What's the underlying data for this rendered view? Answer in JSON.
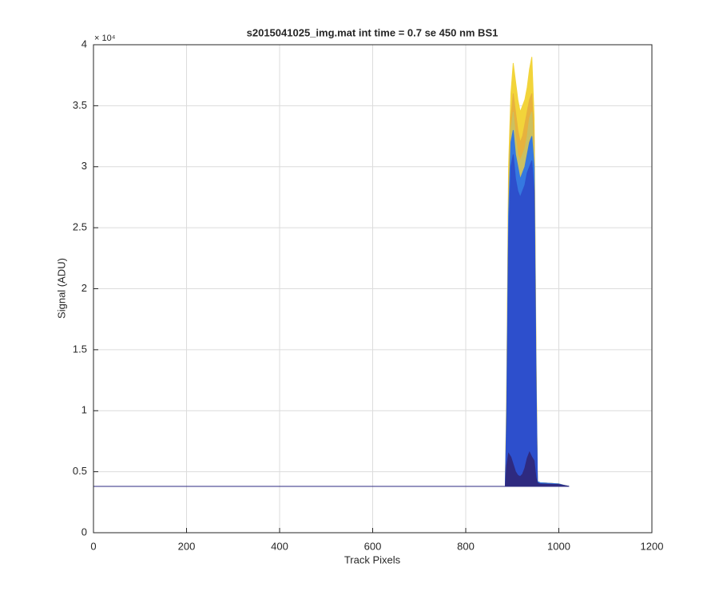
{
  "chart_data": {
    "type": "area",
    "title": "s2015041025_img.mat int time = 0.7 se  450 nm BS1",
    "x_label": "Track Pixels",
    "y_label": "Signal (ADU)",
    "y_exponent": "× 10⁴",
    "x": [
      0,
      885,
      888,
      892,
      897,
      902,
      907,
      912,
      917,
      922,
      927,
      932,
      937,
      942,
      947,
      951,
      954,
      960,
      1000,
      1010,
      1022
    ],
    "series": [
      {
        "name": "yellow",
        "color": "#f2d43a",
        "values": [
          3800,
          3800,
          12000,
          30000,
          36000,
          38500,
          37000,
          35500,
          34500,
          35000,
          35500,
          36500,
          38000,
          39000,
          34000,
          15000,
          4200,
          4100,
          4000,
          3900,
          3800
        ]
      },
      {
        "name": "orange",
        "color": "#e7b23e",
        "values": [
          3800,
          3800,
          11000,
          28000,
          34000,
          36000,
          34500,
          33000,
          32000,
          32500,
          33500,
          34500,
          35500,
          36000,
          32000,
          14000,
          4200,
          4100,
          4000,
          3900,
          3800
        ]
      },
      {
        "name": "olive",
        "color": "#cbc060",
        "values": [
          3800,
          3800,
          10500,
          27000,
          33000,
          34500,
          32500,
          31000,
          30500,
          31000,
          31500,
          32500,
          34000,
          34500,
          31000,
          13500,
          4200,
          4100,
          4000,
          3900,
          3800
        ]
      },
      {
        "name": "light blue",
        "color": "#3578e0",
        "values": [
          3800,
          3800,
          10000,
          26000,
          32000,
          33000,
          31000,
          30000,
          29000,
          29500,
          30000,
          31000,
          32000,
          32500,
          30000,
          13000,
          4200,
          4100,
          4000,
          3900,
          3800
        ]
      },
      {
        "name": "blue",
        "color": "#2d4fcc",
        "values": [
          3800,
          3800,
          9000,
          24000,
          30000,
          31000,
          29000,
          28000,
          27500,
          28000,
          28500,
          29500,
          30000,
          30500,
          28000,
          12000,
          4100,
          4000,
          3950,
          3880,
          3800
        ]
      },
      {
        "name": "navy",
        "color": "#2e2a80",
        "values": [
          3800,
          3800,
          5500,
          6500,
          6200,
          5600,
          5000,
          4700,
          4600,
          4800,
          5300,
          6100,
          6600,
          6200,
          5900,
          4500,
          4100,
          4000,
          3950,
          3880,
          3800
        ]
      }
    ],
    "xlim": [
      0,
      1200
    ],
    "xticks": [
      0,
      200,
      400,
      600,
      800,
      1000,
      1200
    ],
    "ylim": [
      0,
      40000
    ],
    "yticks": [
      0,
      {
        "value": 5000,
        "label": "0.5"
      },
      {
        "value": 10000,
        "label": "1"
      },
      {
        "value": 15000,
        "label": "1.5"
      },
      {
        "value": 20000,
        "label": "2"
      },
      {
        "value": 25000,
        "label": "2.5"
      },
      {
        "value": 30000,
        "label": "3"
      },
      {
        "value": 35000,
        "label": "3.5"
      },
      {
        "value": 40000,
        "label": "4"
      }
    ],
    "grid": true
  }
}
